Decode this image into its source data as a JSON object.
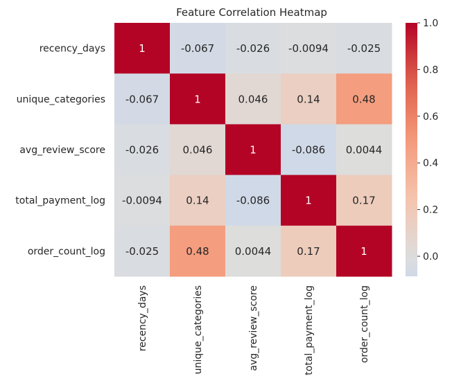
{
  "chart_data": {
    "type": "heatmap",
    "title": "Feature Correlation Heatmap",
    "row_labels": [
      "recency_days",
      "unique_categories",
      "avg_review_score",
      "total_payment_log",
      "order_count_log"
    ],
    "col_labels": [
      "recency_days",
      "unique_categories",
      "avg_review_score",
      "total_payment_log",
      "order_count_log"
    ],
    "values": [
      [
        1,
        -0.067,
        -0.026,
        -0.0094,
        -0.025
      ],
      [
        -0.067,
        1,
        0.046,
        0.14,
        0.48
      ],
      [
        -0.026,
        0.046,
        1,
        -0.086,
        0.0044
      ],
      [
        -0.0094,
        0.14,
        -0.086,
        1,
        0.17
      ],
      [
        -0.025,
        0.48,
        0.0044,
        0.17,
        1
      ]
    ],
    "cell_labels": [
      [
        "1",
        "-0.067",
        "-0.026",
        "-0.0094",
        "-0.025"
      ],
      [
        "-0.067",
        "1",
        "0.046",
        "0.14",
        "0.48"
      ],
      [
        "-0.026",
        "0.046",
        "1",
        "-0.086",
        "0.0044"
      ],
      [
        "-0.0094",
        "0.14",
        "-0.086",
        "1",
        "0.17"
      ],
      [
        "-0.025",
        "0.48",
        "0.0044",
        "0.17",
        "1"
      ]
    ],
    "colormap": "coolwarm",
    "color_range": [
      -0.086,
      1.0
    ],
    "colorbar_ticks": [
      "0.0",
      "0.2",
      "0.4",
      "0.6",
      "0.8",
      "1.0"
    ],
    "colorbar_tick_values": [
      0.0,
      0.2,
      0.4,
      0.6,
      0.8,
      1.0
    ],
    "legend": "colorbar-right"
  }
}
